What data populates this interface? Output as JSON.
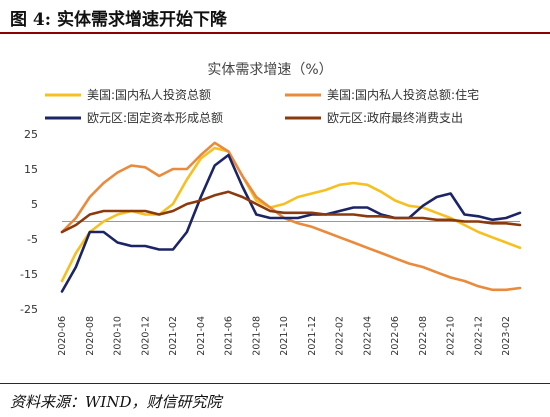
{
  "figure": {
    "header": "图 4:  实体需求增速开始下降",
    "source": "资料来源：WIND，财信研究院"
  },
  "chart_data": {
    "type": "line",
    "title": "实体需求增速（%）",
    "xlabel": "",
    "ylabel": "",
    "ylim": [
      -25,
      25
    ],
    "yticks": [
      -25,
      -15,
      -5,
      5,
      15,
      25
    ],
    "grid": false,
    "legend_placement": "top",
    "x": [
      "2020-06",
      "2020-07",
      "2020-08",
      "2020-09",
      "2020-10",
      "2020-11",
      "2020-12",
      "2021-01",
      "2021-02",
      "2021-03",
      "2021-04",
      "2021-05",
      "2021-06",
      "2021-07",
      "2021-08",
      "2021-09",
      "2021-10",
      "2021-11",
      "2021-12",
      "2022-01",
      "2022-02",
      "2022-03",
      "2022-04",
      "2022-05",
      "2022-06",
      "2022-07",
      "2022-08",
      "2022-09",
      "2022-10",
      "2022-11",
      "2022-12",
      "2023-01",
      "2023-02",
      "2023-03"
    ],
    "xtick_labels": [
      "2020-06",
      "2020-08",
      "2020-10",
      "2020-12",
      "2021-02",
      "2021-04",
      "2021-06",
      "2021-08",
      "2021-10",
      "2021-12",
      "2022-02",
      "2022-04",
      "2022-06",
      "2022-08",
      "2022-10",
      "2022-12",
      "2023-02"
    ],
    "series": [
      {
        "name": "美国:国内私人投资总额",
        "color": "#f5c020",
        "values": [
          -17,
          -9,
          -3,
          0,
          2,
          3,
          2,
          2,
          5,
          12,
          18,
          21,
          20,
          13,
          6,
          4,
          5,
          7,
          8,
          9,
          10.5,
          11,
          10.5,
          8.5,
          6,
          4.5,
          4,
          2.5,
          1,
          -1,
          -3,
          -4.5,
          -6,
          -7.5
        ]
      },
      {
        "name": "美国:国内私人投资总额:住宅",
        "color": "#e98a3c",
        "values": [
          -3,
          1,
          7,
          11,
          14,
          16,
          15.5,
          13,
          15,
          15,
          19,
          22.5,
          20,
          13,
          7,
          4,
          1,
          -0.5,
          -1.5,
          -3,
          -4.5,
          -6,
          -7.5,
          -9,
          -10.5,
          -12,
          -13,
          -14.5,
          -16,
          -17,
          -18.5,
          -19.5,
          -19.5,
          -19
        ]
      },
      {
        "name": "欧元区:固定资本形成总额",
        "color": "#1c2466",
        "values": [
          -20,
          -13,
          -3,
          -3,
          -6,
          -7,
          -7,
          -8,
          -8,
          -3,
          7,
          16,
          19,
          10,
          2,
          1,
          1,
          1,
          2,
          2,
          3,
          4,
          4,
          2,
          1,
          1,
          4.5,
          7,
          8,
          2,
          1.5,
          0.5,
          1,
          2.5
        ]
      },
      {
        "name": "欧元区:政府最终消费支出",
        "color": "#8b3a0e",
        "values": [
          -3,
          -1,
          2,
          3,
          3,
          3,
          3,
          2,
          3,
          5,
          6,
          7.5,
          8.5,
          7,
          5,
          3,
          2.5,
          2.5,
          2.5,
          2,
          2,
          2,
          1.5,
          1.5,
          1,
          1,
          1,
          0.5,
          0.5,
          0,
          0,
          -0.5,
          -0.5,
          -1
        ]
      }
    ]
  }
}
